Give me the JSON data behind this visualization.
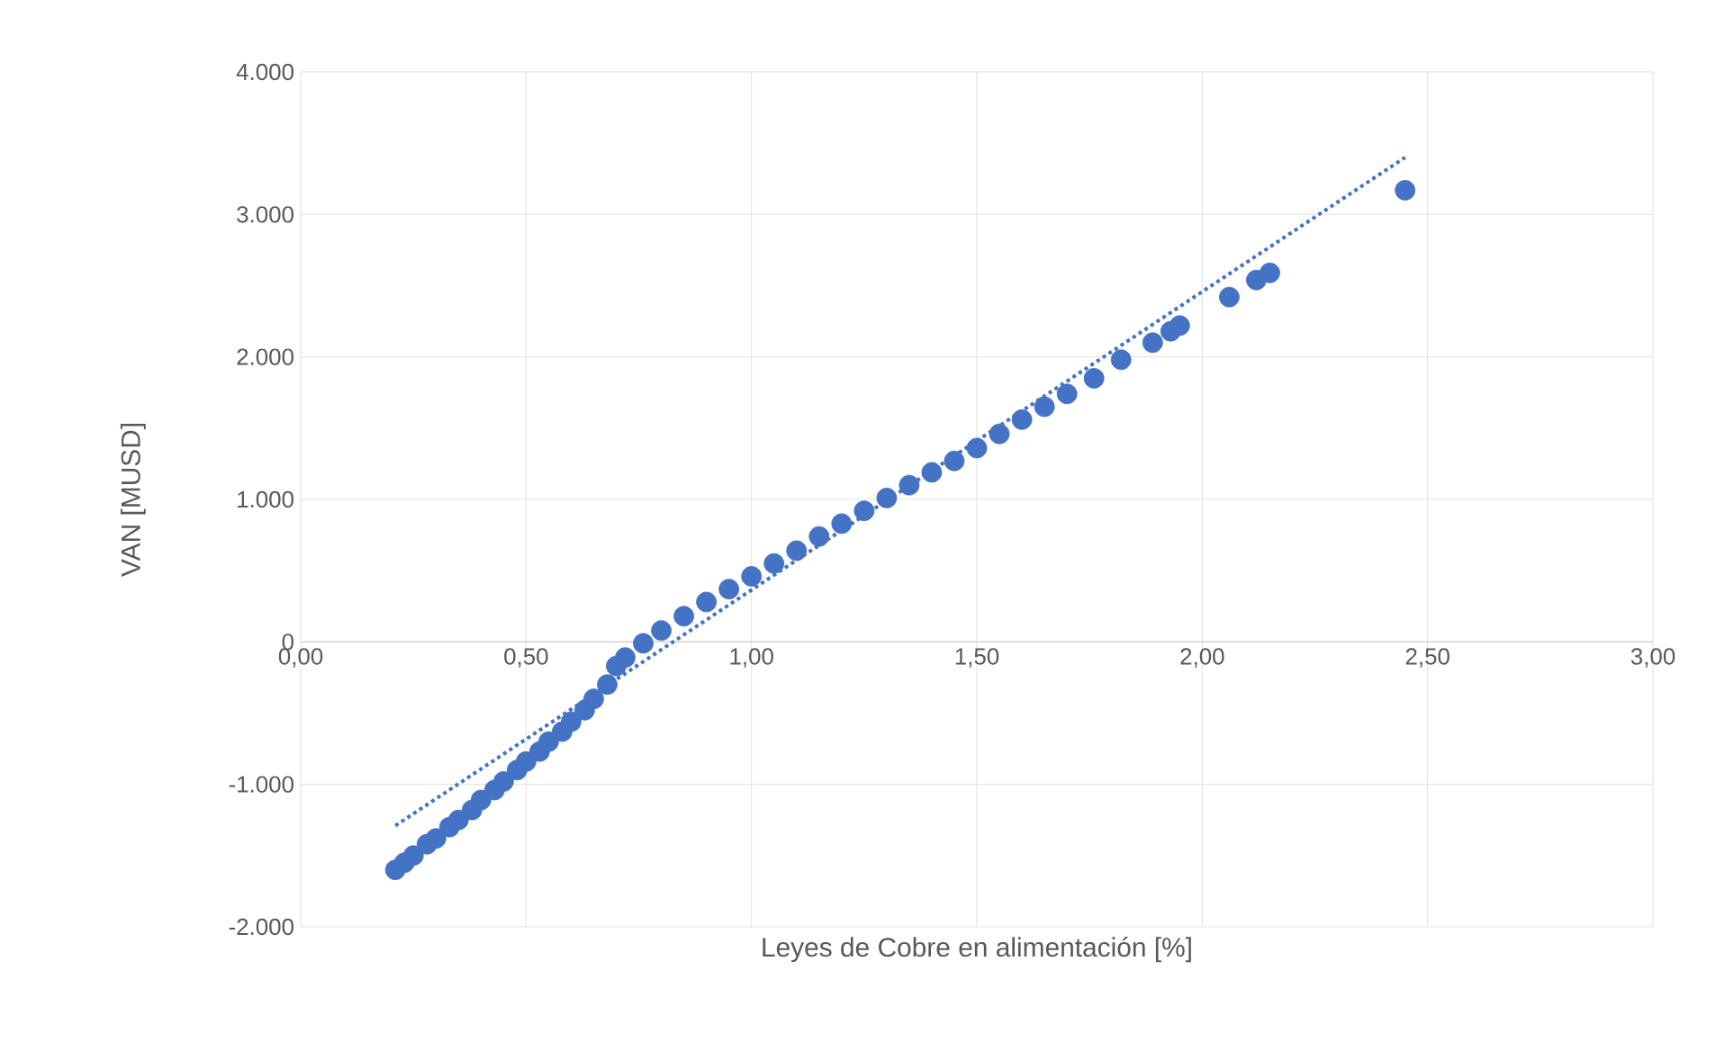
{
  "chart_data": {
    "type": "scatter",
    "xlabel": "Leyes de Cobre en alimentación [%]",
    "ylabel": "VAN [MUSD]",
    "xlim": [
      0,
      3
    ],
    "ylim": [
      -2000,
      4000
    ],
    "xticks": [
      {
        "value": 0,
        "label": "0,00"
      },
      {
        "value": 0.5,
        "label": "0,50"
      },
      {
        "value": 1,
        "label": "1,00"
      },
      {
        "value": 1.5,
        "label": "1,50"
      },
      {
        "value": 2,
        "label": "2,00"
      },
      {
        "value": 2.5,
        "label": "2,50"
      },
      {
        "value": 3,
        "label": "3,00"
      }
    ],
    "yticks": [
      {
        "value": -2000,
        "label": "-2.000"
      },
      {
        "value": -1000,
        "label": "-1.000"
      },
      0,
      {
        "value": 1000,
        "label": "1.000"
      },
      {
        "value": 2000,
        "label": "2.000"
      },
      {
        "value": 3000,
        "label": "3.000"
      },
      {
        "value": 4000,
        "label": "4.000"
      }
    ],
    "grid": true,
    "marker": "circle",
    "series": [
      {
        "color": "#4472c4",
        "x": [
          0.21,
          0.23,
          0.25,
          0.28,
          0.3,
          0.33,
          0.35,
          0.38,
          0.4,
          0.43,
          0.45,
          0.48,
          0.5,
          0.53,
          0.55,
          0.58,
          0.6,
          0.63,
          0.65,
          0.68,
          0.7,
          0.72,
          0.76,
          0.8,
          0.85,
          0.9,
          0.95,
          1.0,
          1.05,
          1.1,
          1.15,
          1.2,
          1.25,
          1.3,
          1.35,
          1.4,
          1.45,
          1.5,
          1.55,
          1.6,
          1.65,
          1.7,
          1.76,
          1.82,
          1.89,
          1.93,
          1.95,
          2.06,
          2.12,
          2.15,
          2.45
        ],
        "values": [
          -1600,
          -1550,
          -1500,
          -1420,
          -1380,
          -1300,
          -1250,
          -1180,
          -1110,
          -1040,
          -980,
          -900,
          -840,
          -770,
          -700,
          -630,
          -560,
          -480,
          -400,
          -300,
          -170,
          -110,
          -10,
          80,
          180,
          280,
          370,
          460,
          550,
          640,
          740,
          830,
          920,
          1010,
          1100,
          1190,
          1270,
          1360,
          1460,
          1560,
          1650,
          1740,
          1850,
          1980,
          2100,
          2180,
          2220,
          2420,
          2540,
          2590,
          3170
        ]
      },
      {
        "type": "line",
        "line_style": "dotted",
        "marker": "none",
        "color": "#4472c4",
        "x": [
          0.21,
          2.45
        ],
        "values": [
          -1290,
          3400
        ]
      }
    ]
  }
}
